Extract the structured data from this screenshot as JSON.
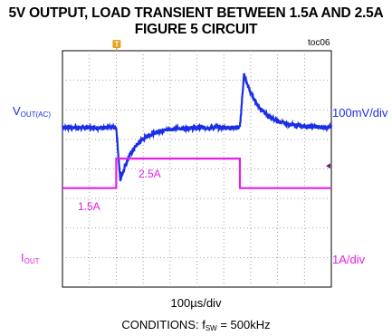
{
  "title_line1": "5V OUTPUT, LOAD TRANSIENT BETWEEN 1.5A AND 2.5A",
  "title_line2": "FIGURE 5 CIRCUIT",
  "tag": "toc06",
  "trigger_marker": "T",
  "colors": {
    "vout": "#1a2ee6",
    "iout": "#e61ee6",
    "frame": "#000000",
    "grid": "#888888"
  },
  "chart_data": {
    "type": "line",
    "title": "5V OUTPUT, LOAD TRANSIENT BETWEEN 1.5A AND 2.5A",
    "subtitle": "FIGURE 5 CIRCUIT",
    "xlabel": "100µs/div",
    "x_divisions": 10,
    "grid": true,
    "series": [
      {
        "name": "VOUT(AC)",
        "label_main": "V",
        "label_sub": "OUT(AC)",
        "scale": "100mV/div",
        "x_div": [
          0,
          2.0,
          2.15,
          2.6,
          3.2,
          4.5,
          6.6,
          6.75,
          7.2,
          8.0,
          9.0,
          10
        ],
        "y_mV": [
          0,
          0,
          -180,
          -70,
          -25,
          0,
          0,
          180,
          80,
          20,
          0,
          0
        ]
      },
      {
        "name": "IOUT",
        "label_main": "I",
        "label_sub": "OUT",
        "scale": "1A/div",
        "x_div": [
          0,
          2.0,
          2.0,
          6.6,
          6.6,
          10
        ],
        "y_A": [
          1.5,
          1.5,
          2.5,
          2.5,
          1.5,
          1.5
        ],
        "annotations": [
          "1.5A",
          "2.5A"
        ]
      }
    ]
  },
  "conditions_prefix": "CONDITIONS: f",
  "conditions_sub": "SW",
  "conditions_suffix": " = 500kHz"
}
